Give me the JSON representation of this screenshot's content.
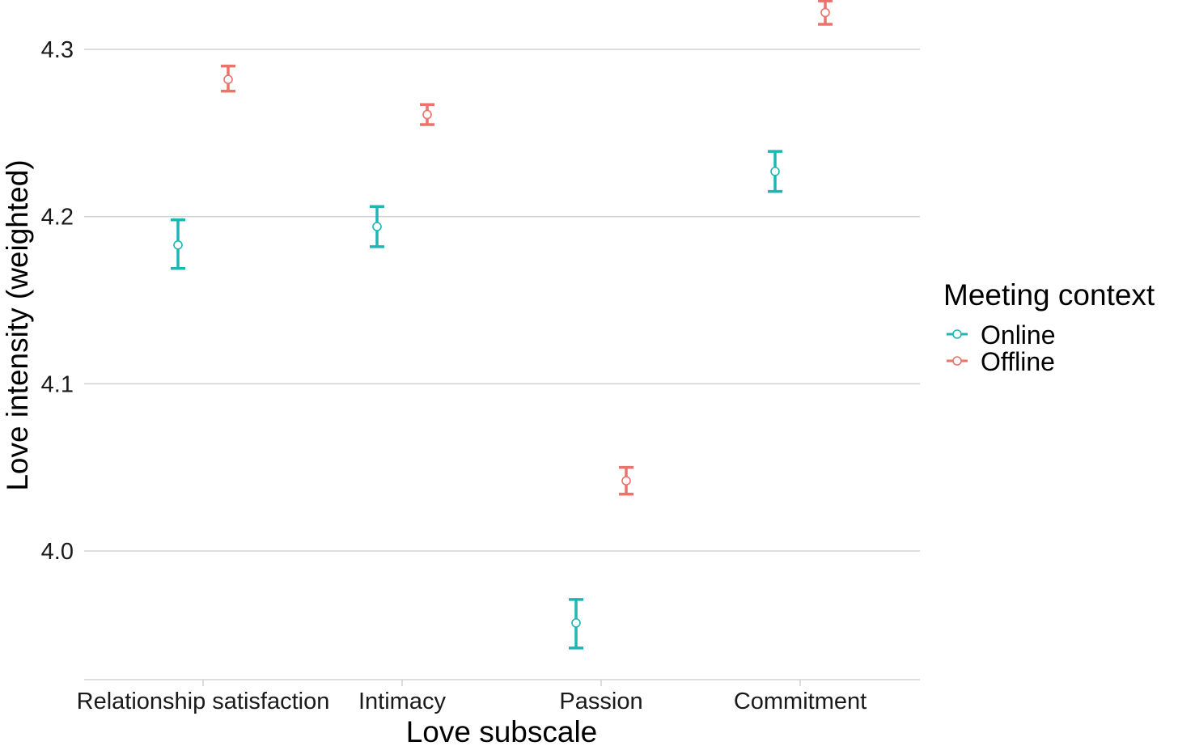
{
  "chart_data": {
    "type": "scatter",
    "subtype": "point-with-errorbars",
    "categories": [
      "Relationship satisfaction",
      "Intimacy",
      "Passion",
      "Commitment"
    ],
    "xlabel": "Love subscale",
    "ylabel": "Love intensity (weighted)",
    "ylim": [
      3.925,
      4.33
    ],
    "yticks": [
      4.0,
      4.1,
      4.2,
      4.3
    ],
    "ytick_labels": [
      "4.0",
      "4.1",
      "4.2",
      "4.3"
    ],
    "grid": "horizontal major gridlines",
    "legend": {
      "title": "Meeting context",
      "placement": "right"
    },
    "series": [
      {
        "name": "Online",
        "color": "#1FB5B5",
        "values": [
          4.183,
          4.194,
          3.957,
          4.227
        ],
        "lower": [
          4.169,
          4.182,
          3.942,
          4.215
        ],
        "upper": [
          4.198,
          4.206,
          3.971,
          4.239
        ]
      },
      {
        "name": "Offline",
        "color": "#EB736B",
        "values": [
          4.282,
          4.261,
          4.042,
          4.322
        ],
        "lower": [
          4.275,
          4.255,
          4.034,
          4.315
        ],
        "upper": [
          4.29,
          4.267,
          4.05,
          4.329
        ]
      }
    ]
  }
}
